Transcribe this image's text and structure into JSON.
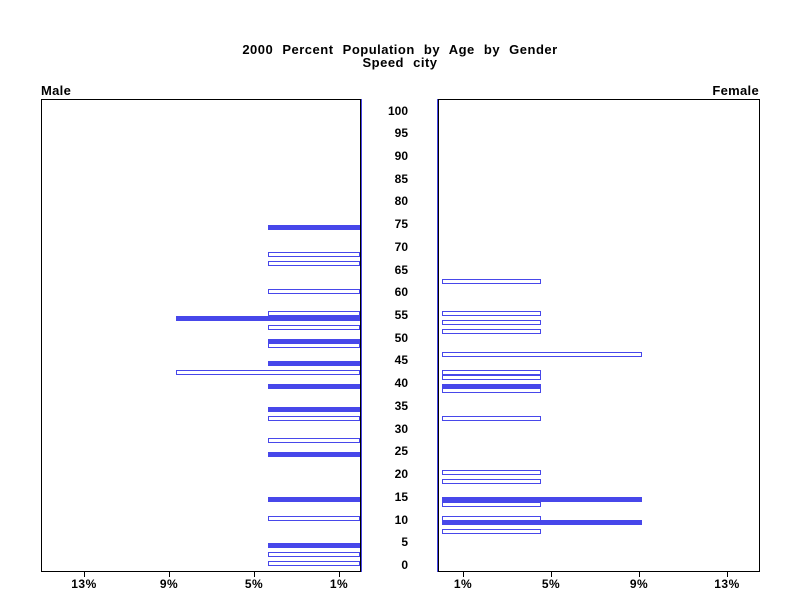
{
  "title": {
    "line1": "2000 Percent Population by Age by Gender",
    "line2": "Speed city"
  },
  "panels": {
    "left_label": "Male",
    "right_label": "Female"
  },
  "axes": {
    "age_tick_labels": [
      "0",
      "5",
      "10",
      "15",
      "20",
      "25",
      "30",
      "35",
      "40",
      "45",
      "50",
      "55",
      "60",
      "65",
      "70",
      "75",
      "80",
      "85",
      "90",
      "95",
      "100"
    ],
    "age_tick_values": [
      0,
      5,
      10,
      15,
      20,
      25,
      30,
      35,
      40,
      45,
      50,
      55,
      60,
      65,
      70,
      75,
      80,
      85,
      90,
      95,
      100
    ],
    "male_percent_ticks": [
      {
        "value": 13,
        "label": "13%"
      },
      {
        "value": 9,
        "label": "9%"
      },
      {
        "value": 5,
        "label": "5%"
      },
      {
        "value": 1,
        "label": "1%"
      }
    ],
    "female_percent_ticks": [
      {
        "value": 1,
        "label": "1%"
      },
      {
        "value": 5,
        "label": "5%"
      },
      {
        "value": 9,
        "label": "9%"
      },
      {
        "value": 13,
        "label": "13%"
      }
    ]
  },
  "colors": {
    "bar_blue": "#4747EA",
    "frame": "#000000",
    "background": "#FFFFFF"
  },
  "chart_data": {
    "type": "bar",
    "variant": "population-pyramid",
    "title": "2000 Percent Population by Age by Gender",
    "subtitle": "Speed city",
    "age_axis": {
      "min": 0,
      "max": 100,
      "tick_step": 5,
      "bar_resolution_years": 1
    },
    "percent_axis": {
      "min": 0,
      "max": 15,
      "ticks": [
        1,
        5,
        9,
        13
      ],
      "tick_label_suffix": "%"
    },
    "legend": "none",
    "grid": false,
    "series": [
      {
        "name": "Male",
        "side": "left",
        "bars": [
          {
            "age": 75,
            "value": 4.35,
            "filled": true
          },
          {
            "age": 69,
            "value": 4.35,
            "filled": false
          },
          {
            "age": 67,
            "value": 4.35,
            "filled": false
          },
          {
            "age": 61,
            "value": 4.35,
            "filled": false
          },
          {
            "age": 56,
            "value": 4.35,
            "filled": false
          },
          {
            "age": 55,
            "value": 8.7,
            "filled": true
          },
          {
            "age": 53,
            "value": 4.35,
            "filled": false
          },
          {
            "age": 50,
            "value": 4.35,
            "filled": true
          },
          {
            "age": 49,
            "value": 4.35,
            "filled": false
          },
          {
            "age": 45,
            "value": 4.35,
            "filled": true
          },
          {
            "age": 43,
            "value": 8.7,
            "filled": false
          },
          {
            "age": 40,
            "value": 4.35,
            "filled": true
          },
          {
            "age": 35,
            "value": 4.35,
            "filled": true
          },
          {
            "age": 33,
            "value": 4.35,
            "filled": false
          },
          {
            "age": 28,
            "value": 4.35,
            "filled": false
          },
          {
            "age": 25,
            "value": 4.35,
            "filled": true
          },
          {
            "age": 15,
            "value": 4.35,
            "filled": true
          },
          {
            "age": 11,
            "value": 4.35,
            "filled": false
          },
          {
            "age": 5,
            "value": 4.35,
            "filled": true
          },
          {
            "age": 3,
            "value": 4.35,
            "filled": false
          },
          {
            "age": 1,
            "value": 4.35,
            "filled": false
          }
        ]
      },
      {
        "name": "Female",
        "side": "right",
        "bars": [
          {
            "age": 63,
            "value": 4.5,
            "filled": false
          },
          {
            "age": 56,
            "value": 4.5,
            "filled": false
          },
          {
            "age": 54,
            "value": 4.5,
            "filled": false
          },
          {
            "age": 52,
            "value": 4.5,
            "filled": false
          },
          {
            "age": 47,
            "value": 9.1,
            "filled": false
          },
          {
            "age": 43,
            "value": 4.5,
            "filled": false
          },
          {
            "age": 42,
            "value": 4.5,
            "filled": false
          },
          {
            "age": 40,
            "value": 4.5,
            "filled": true
          },
          {
            "age": 39,
            "value": 4.5,
            "filled": false
          },
          {
            "age": 33,
            "value": 4.5,
            "filled": false
          },
          {
            "age": 21,
            "value": 4.5,
            "filled": false
          },
          {
            "age": 19,
            "value": 4.5,
            "filled": false
          },
          {
            "age": 15,
            "value": 9.1,
            "filled": true
          },
          {
            "age": 14,
            "value": 4.5,
            "filled": false
          },
          {
            "age": 11,
            "value": 4.5,
            "filled": false
          },
          {
            "age": 10,
            "value": 9.1,
            "filled": true
          },
          {
            "age": 8,
            "value": 4.5,
            "filled": false
          }
        ]
      }
    ]
  }
}
